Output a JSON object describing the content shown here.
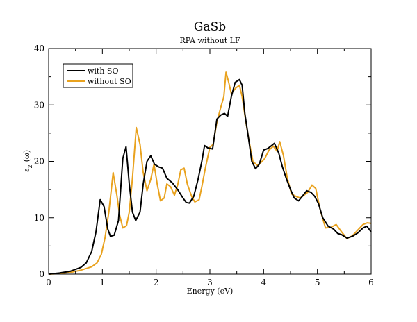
{
  "chart_data": {
    "type": "line",
    "title": "GaSb",
    "subtitle": "RPA  without LF",
    "xlabel": "Energy (eV)",
    "ylabel_main": "ε",
    "ylabel_sub": "2",
    "ylabel_tail": "(ω)",
    "xlim": [
      0,
      6
    ],
    "ylim": [
      0,
      40
    ],
    "xticks": [
      0,
      1,
      2,
      3,
      4,
      5,
      6
    ],
    "yticks": [
      0,
      10,
      20,
      30,
      40
    ],
    "grid": false,
    "legend_position": "top-left",
    "series": [
      {
        "name": "with SO",
        "color": "#000000",
        "points": [
          [
            0.0,
            0.0
          ],
          [
            0.2,
            0.2
          ],
          [
            0.4,
            0.5
          ],
          [
            0.6,
            1.2
          ],
          [
            0.7,
            2.0
          ],
          [
            0.8,
            4.0
          ],
          [
            0.88,
            7.5
          ],
          [
            0.96,
            13.2
          ],
          [
            1.03,
            12.0
          ],
          [
            1.1,
            8.0
          ],
          [
            1.15,
            6.7
          ],
          [
            1.22,
            6.9
          ],
          [
            1.3,
            9.5
          ],
          [
            1.38,
            20.5
          ],
          [
            1.44,
            22.6
          ],
          [
            1.5,
            16.0
          ],
          [
            1.56,
            11.0
          ],
          [
            1.62,
            9.5
          ],
          [
            1.7,
            11.0
          ],
          [
            1.76,
            16.0
          ],
          [
            1.83,
            20.0
          ],
          [
            1.9,
            21.0
          ],
          [
            1.97,
            19.5
          ],
          [
            2.05,
            19.0
          ],
          [
            2.12,
            18.8
          ],
          [
            2.2,
            17.0
          ],
          [
            2.3,
            16.2
          ],
          [
            2.4,
            15.0
          ],
          [
            2.5,
            13.5
          ],
          [
            2.56,
            12.7
          ],
          [
            2.62,
            12.6
          ],
          [
            2.7,
            13.8
          ],
          [
            2.78,
            16.8
          ],
          [
            2.85,
            20.0
          ],
          [
            2.9,
            22.8
          ],
          [
            2.96,
            22.4
          ],
          [
            3.05,
            22.2
          ],
          [
            3.13,
            27.5
          ],
          [
            3.2,
            28.2
          ],
          [
            3.27,
            28.5
          ],
          [
            3.33,
            28.0
          ],
          [
            3.4,
            31.5
          ],
          [
            3.47,
            34.0
          ],
          [
            3.55,
            34.5
          ],
          [
            3.6,
            33.5
          ],
          [
            3.65,
            28.5
          ],
          [
            3.72,
            24.0
          ],
          [
            3.78,
            20.0
          ],
          [
            3.85,
            18.7
          ],
          [
            3.92,
            19.5
          ],
          [
            4.0,
            22.0
          ],
          [
            4.08,
            22.3
          ],
          [
            4.15,
            22.8
          ],
          [
            4.2,
            23.2
          ],
          [
            4.28,
            21.5
          ],
          [
            4.35,
            19.0
          ],
          [
            4.42,
            17.0
          ],
          [
            4.5,
            15.0
          ],
          [
            4.57,
            13.5
          ],
          [
            4.65,
            13.0
          ],
          [
            4.72,
            13.8
          ],
          [
            4.8,
            14.8
          ],
          [
            4.88,
            14.5
          ],
          [
            4.95,
            13.8
          ],
          [
            5.02,
            12.5
          ],
          [
            5.1,
            10.0
          ],
          [
            5.2,
            8.5
          ],
          [
            5.3,
            8.0
          ],
          [
            5.38,
            7.2
          ],
          [
            5.45,
            7.0
          ],
          [
            5.55,
            6.4
          ],
          [
            5.65,
            6.7
          ],
          [
            5.75,
            7.3
          ],
          [
            5.85,
            8.2
          ],
          [
            5.92,
            8.5
          ],
          [
            6.0,
            7.5
          ]
        ]
      },
      {
        "name": "without SO",
        "color": "#E9A21E",
        "points": [
          [
            0.0,
            0.0
          ],
          [
            0.2,
            0.1
          ],
          [
            0.4,
            0.3
          ],
          [
            0.6,
            0.7
          ],
          [
            0.8,
            1.3
          ],
          [
            0.9,
            2.0
          ],
          [
            0.98,
            3.5
          ],
          [
            1.05,
            6.5
          ],
          [
            1.12,
            11.0
          ],
          [
            1.2,
            18.0
          ],
          [
            1.27,
            14.0
          ],
          [
            1.32,
            10.5
          ],
          [
            1.38,
            8.2
          ],
          [
            1.45,
            8.6
          ],
          [
            1.5,
            11.0
          ],
          [
            1.56,
            17.0
          ],
          [
            1.63,
            26.0
          ],
          [
            1.7,
            23.0
          ],
          [
            1.76,
            18.0
          ],
          [
            1.83,
            14.8
          ],
          [
            1.9,
            16.8
          ],
          [
            1.96,
            19.5
          ],
          [
            2.02,
            16.0
          ],
          [
            2.08,
            13.0
          ],
          [
            2.15,
            13.5
          ],
          [
            2.2,
            16.0
          ],
          [
            2.27,
            15.5
          ],
          [
            2.34,
            14.0
          ],
          [
            2.4,
            15.8
          ],
          [
            2.46,
            18.5
          ],
          [
            2.52,
            18.8
          ],
          [
            2.58,
            16.0
          ],
          [
            2.66,
            13.8
          ],
          [
            2.72,
            12.8
          ],
          [
            2.8,
            13.2
          ],
          [
            2.85,
            15.5
          ],
          [
            2.92,
            19.0
          ],
          [
            3.0,
            22.5
          ],
          [
            3.06,
            23.0
          ],
          [
            3.13,
            27.0
          ],
          [
            3.2,
            29.5
          ],
          [
            3.26,
            31.5
          ],
          [
            3.3,
            35.8
          ],
          [
            3.35,
            34.0
          ],
          [
            3.4,
            32.0
          ],
          [
            3.48,
            33.0
          ],
          [
            3.55,
            33.5
          ],
          [
            3.6,
            31.5
          ],
          [
            3.67,
            27.0
          ],
          [
            3.73,
            23.5
          ],
          [
            3.8,
            20.0
          ],
          [
            3.88,
            19.3
          ],
          [
            3.95,
            19.8
          ],
          [
            4.02,
            20.5
          ],
          [
            4.1,
            22.0
          ],
          [
            4.18,
            22.7
          ],
          [
            4.25,
            21.8
          ],
          [
            4.3,
            23.5
          ],
          [
            4.37,
            21.0
          ],
          [
            4.44,
            17.0
          ],
          [
            4.52,
            14.2
          ],
          [
            4.6,
            13.8
          ],
          [
            4.68,
            13.5
          ],
          [
            4.75,
            14.0
          ],
          [
            4.82,
            14.5
          ],
          [
            4.9,
            15.8
          ],
          [
            4.97,
            15.2
          ],
          [
            5.05,
            11.5
          ],
          [
            5.15,
            8.2
          ],
          [
            5.25,
            8.3
          ],
          [
            5.35,
            8.8
          ],
          [
            5.45,
            7.5
          ],
          [
            5.55,
            6.3
          ],
          [
            5.65,
            6.8
          ],
          [
            5.75,
            7.8
          ],
          [
            5.85,
            8.8
          ],
          [
            5.93,
            9.1
          ],
          [
            6.0,
            9.0
          ]
        ]
      }
    ]
  }
}
